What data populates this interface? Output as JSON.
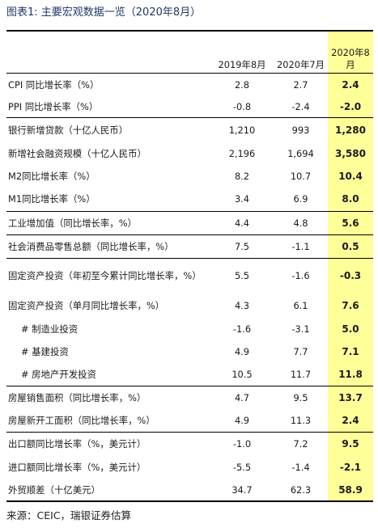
{
  "title": "图表1: 主要宏观数据一览（2020年8月）",
  "columns": [
    "",
    "2019年8月",
    "2020年7月",
    "2020年8月"
  ],
  "rows": [
    {
      "label": "CPI 同比增长率（%）",
      "values": [
        "2.8",
        "2.7",
        "2.4"
      ]
    },
    {
      "label": "PPI 同比增长率（%）",
      "values": [
        "-0.8",
        "-2.4",
        "-2.0"
      ]
    },
    {
      "label": "银行新增贷款（十亿人民币）",
      "values": [
        "1,210",
        "993",
        "1,280"
      ]
    },
    {
      "label": "新增社会融资规模（十亿人民币）",
      "values": [
        "2,196",
        "1,694",
        "3,580"
      ]
    },
    {
      "label": "M2同比增长率（%）",
      "values": [
        "8.2",
        "10.7",
        "10.4"
      ]
    },
    {
      "label": "M1同比增长率（%）",
      "values": [
        "3.4",
        "6.9",
        "8.0"
      ]
    },
    {
      "label": "工业增加值（同比增长率，%）",
      "values": [
        "4.4",
        "4.8",
        "5.6"
      ]
    },
    {
      "label": "社会消费品零售总额（同比增长率，%）",
      "values": [
        "7.5",
        "-1.1",
        "0.5"
      ]
    },
    {
      "label": "固定资产投资（年初至今累计同比增长率，%）",
      "values": [
        "5.5",
        "-1.6",
        "-0.3"
      ]
    },
    {
      "label": "固定资产投资（单月同比增长率，%）",
      "values": [
        "4.3",
        "6.1",
        "7.6"
      ]
    },
    {
      "label": "# 制造业投资",
      "values": [
        "-1.6",
        "-3.1",
        "5.0"
      ]
    },
    {
      "label": "# 基建投资",
      "values": [
        "4.9",
        "7.7",
        "7.1"
      ]
    },
    {
      "label": "# 房地产开发投资",
      "values": [
        "10.5",
        "11.7",
        "11.8"
      ]
    },
    {
      "label": "房屋销售面积（同比增长率，%）",
      "values": [
        "4.7",
        "9.5",
        "13.7"
      ]
    },
    {
      "label": "房屋新开工面积（同比增长率，%）",
      "values": [
        "4.9",
        "11.3",
        "2.4"
      ]
    },
    {
      "label": "出口额同比增长率（%，美元计）",
      "values": [
        "-1.0",
        "7.2",
        "9.5"
      ]
    },
    {
      "label": "进口额同比增长率（%，美元计）",
      "values": [
        "-5.5",
        "-1.4",
        "-2.1"
      ]
    },
    {
      "label": "外贸顺差（十亿美元）",
      "values": [
        "34.7",
        "62.3",
        "58.9"
      ]
    }
  ],
  "source": "来源：CEIC，瑞银证券估算",
  "highlight_color": "#ffff99"
}
